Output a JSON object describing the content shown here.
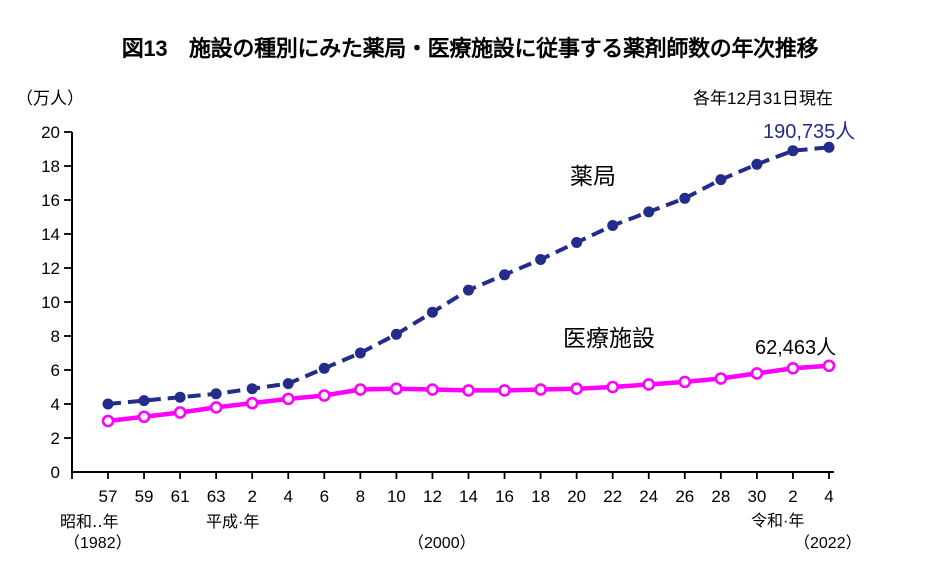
{
  "chart_data": {
    "type": "line",
    "title": "図13　施設の種別にみた薬局・医療施設に従事する薬剤師数の年次推移",
    "unit_label": "（万人）",
    "note": "各年12月31日現在",
    "x_tick_labels": [
      "57",
      "59",
      "61",
      "63",
      "2",
      "4",
      "6",
      "8",
      "10",
      "12",
      "14",
      "16",
      "18",
      "20",
      "22",
      "24",
      "26",
      "28",
      "30",
      "2",
      "4"
    ],
    "y_ticks": [
      0,
      2,
      4,
      6,
      8,
      10,
      12,
      14,
      16,
      18,
      20
    ],
    "ylim": [
      0,
      20
    ],
    "grid": "off",
    "eras": {
      "showa": "昭和‥年",
      "showa_year": "（1982）",
      "heisei": "平成·年",
      "year_2000": "（2000）",
      "reiwa": "令和·年",
      "reiwa_year": "（2022）"
    },
    "series": [
      {
        "name": "薬局",
        "color": "#232C8B",
        "line_style": "dashed",
        "marker": "filled-circle",
        "values": [
          4.0,
          4.2,
          4.4,
          4.6,
          4.9,
          5.2,
          6.1,
          7.0,
          8.1,
          9.4,
          10.7,
          11.6,
          12.5,
          13.5,
          14.5,
          15.3,
          16.1,
          17.2,
          18.1,
          18.9,
          19.1
        ],
        "annotation": "190,735人"
      },
      {
        "name": "医療施設",
        "color": "#FF00FF",
        "line_style": "solid",
        "marker": "open-circle",
        "values": [
          3.0,
          3.25,
          3.5,
          3.8,
          4.05,
          4.3,
          4.5,
          4.85,
          4.9,
          4.85,
          4.8,
          4.8,
          4.85,
          4.9,
          5.0,
          5.15,
          5.3,
          5.5,
          5.8,
          6.1,
          6.25
        ],
        "annotation": "62,463人"
      }
    ]
  }
}
